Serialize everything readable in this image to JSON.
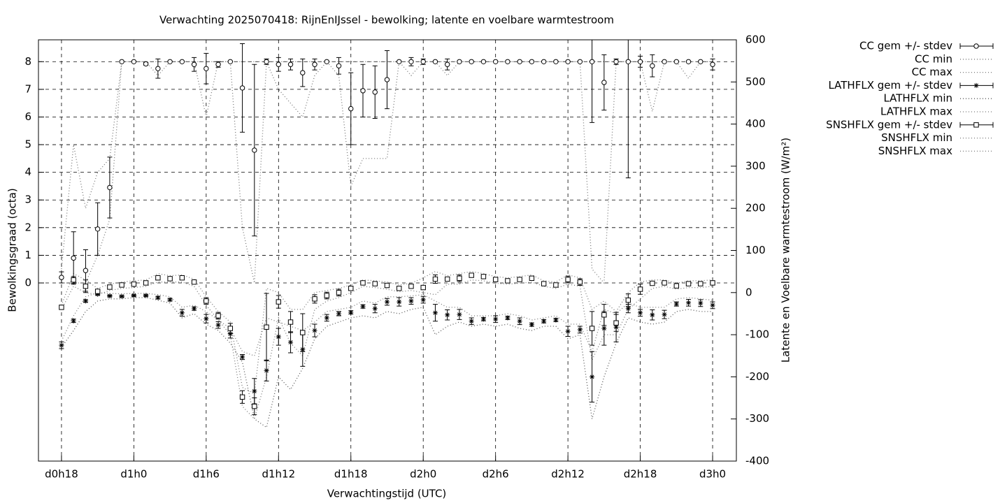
{
  "chart_data": {
    "type": "errorbar",
    "title": "Verwachting 2025070418: RijnEnIJssel - bewolking; latente en voelbare warmtestroom",
    "x_label": "Verwachtingstijd (UTC)",
    "y_label": "Bewolkingsgraad (octa)",
    "y2_label": "Latente en Voelbare warmtestroom (W/m²)",
    "x": [
      18,
      19,
      20,
      21,
      22,
      23,
      24,
      25,
      26,
      27,
      28,
      29,
      30,
      31,
      32,
      33,
      34,
      35,
      36,
      37,
      38,
      39,
      40,
      41,
      42,
      43,
      44,
      45,
      46,
      47,
      48,
      49,
      50,
      51,
      52,
      53,
      54,
      55,
      56,
      57,
      58,
      59,
      60,
      61,
      62,
      63,
      64,
      65,
      66,
      67,
      68,
      69,
      70,
      71,
      72
    ],
    "xlim": [
      16.09,
      73.97
    ],
    "xticks": [
      {
        "value": 18,
        "label": "d0h18"
      },
      {
        "value": 24,
        "label": "d1h0"
      },
      {
        "value": 30,
        "label": "d1h6"
      },
      {
        "value": 36,
        "label": "d1h12"
      },
      {
        "value": 42,
        "label": "d1h18"
      },
      {
        "value": 48,
        "label": "d2h0"
      },
      {
        "value": 54,
        "label": "d2h6"
      },
      {
        "value": 60,
        "label": "d2h12"
      },
      {
        "value": 66,
        "label": "d2h18"
      },
      {
        "value": 72,
        "label": "d3h0"
      }
    ],
    "ylim": [
      -6.44,
      8.79
    ],
    "yticks": [
      0,
      1,
      2,
      3,
      4,
      5,
      6,
      7,
      8
    ],
    "y2lim": [
      -400,
      600
    ],
    "y2ticks": [
      -400,
      -300,
      -200,
      -100,
      0,
      100,
      200,
      300,
      400,
      500,
      600
    ],
    "grid": true,
    "legend": "outside-right",
    "series": [
      {
        "name": "CC gem +/- stdev",
        "color": "#000000",
        "marker": "circle",
        "axis": "y",
        "values": [
          0.2,
          0.9,
          0.45,
          1.95,
          3.45,
          8,
          8,
          7.92,
          7.75,
          8,
          8,
          7.9,
          7.75,
          7.9,
          8,
          7.05,
          4.8,
          8,
          7.9,
          7.9,
          7.6,
          7.9,
          8,
          7.85,
          6.3,
          6.95,
          6.9,
          7.35,
          8,
          8,
          8,
          8,
          7.9,
          8,
          8,
          8,
          8,
          8,
          8,
          8,
          8,
          8,
          8,
          8,
          8,
          7.25,
          8,
          8,
          8,
          7.85,
          8,
          8,
          8,
          8,
          7.9
        ],
        "errors": [
          0.2,
          0.95,
          0.75,
          0.95,
          1.1,
          0,
          0,
          0.05,
          0.35,
          0,
          0,
          0.25,
          0.55,
          0.1,
          0,
          1.6,
          3.1,
          0.1,
          0.25,
          0.2,
          0.5,
          0.2,
          0,
          0.3,
          1.3,
          0.95,
          0.95,
          1.05,
          0,
          0.15,
          0.1,
          0,
          0.2,
          0,
          0,
          0,
          0,
          0,
          0,
          0,
          0,
          0,
          0,
          0,
          2.2,
          1.0,
          0.1,
          4.2,
          0.2,
          0.4,
          0,
          0,
          0,
          0,
          0.2
        ]
      },
      {
        "name": "CC min",
        "color": "#777777",
        "line": "dotted",
        "axis": "y",
        "values": [
          0,
          0,
          0,
          1,
          2.3,
          8,
          8,
          8,
          7.5,
          8,
          8,
          8,
          6,
          8,
          8,
          2,
          0,
          8,
          7,
          6.5,
          6,
          7.5,
          8,
          7.5,
          3.5,
          4.5,
          4.5,
          4.5,
          8,
          7.5,
          8,
          8,
          7.5,
          8,
          8,
          8,
          8,
          8,
          8,
          8,
          8,
          8,
          8,
          8,
          0.5,
          0,
          8,
          8,
          8,
          6.2,
          8,
          8,
          7.4,
          8,
          8
        ]
      },
      {
        "name": "CC max",
        "color": "#777777",
        "line": "dotted",
        "axis": "y",
        "values": [
          0.5,
          5,
          2.7,
          4,
          4.5,
          8,
          8,
          8,
          8,
          8,
          8,
          8,
          8,
          8,
          8,
          8,
          8,
          8,
          8,
          8,
          8,
          8,
          8,
          8,
          8,
          8,
          8,
          8,
          8,
          8,
          8,
          8,
          8,
          8,
          8,
          8,
          8,
          8,
          8,
          8,
          8,
          8,
          8,
          8,
          8,
          8,
          8,
          8,
          8,
          8,
          8,
          8,
          8,
          8,
          8
        ]
      },
      {
        "name": "LATHFLX gem +/- stdev",
        "color": "#000000",
        "marker": "asterisk",
        "axis": "y2",
        "values": [
          -125,
          -67,
          -20,
          -4,
          -8,
          -9,
          -7,
          -7,
          -12,
          -17,
          -48,
          -38,
          -62,
          -77,
          -98,
          -153,
          -234,
          -185,
          -105,
          -118,
          -135,
          -90,
          -60,
          -50,
          -47,
          -33,
          -38,
          -22,
          -22,
          -20,
          -17,
          -48,
          -53,
          -52,
          -68,
          -63,
          -63,
          -60,
          -68,
          -76,
          -68,
          -65,
          -92,
          -88,
          -200,
          -85,
          -82,
          -38,
          -48,
          -53,
          -52,
          -27,
          -24,
          -25,
          -30
        ],
        "errors": [
          8,
          4,
          3,
          2,
          2,
          2,
          2,
          2,
          3,
          3,
          8,
          4,
          10,
          8,
          10,
          6,
          30,
          25,
          20,
          25,
          40,
          15,
          8,
          5,
          4,
          4,
          10,
          8,
          10,
          8,
          8,
          20,
          12,
          12,
          8,
          4,
          8,
          4,
          8,
          4,
          4,
          4,
          12,
          8,
          60,
          40,
          35,
          10,
          8,
          12,
          10,
          5,
          8,
          8,
          8
        ]
      },
      {
        "name": "LATHFLX min",
        "color": "#555555",
        "line": "dotted",
        "axis": "y2",
        "values": [
          -130,
          -90,
          -45,
          -20,
          -15,
          -15,
          -12,
          -12,
          -18,
          -25,
          -60,
          -50,
          -75,
          -90,
          -120,
          -165,
          -300,
          -320,
          -200,
          -230,
          -180,
          -110,
          -80,
          -70,
          -60,
          -55,
          -60,
          -45,
          -50,
          -40,
          -35,
          -100,
          -80,
          -70,
          -80,
          -75,
          -80,
          -75,
          -85,
          -90,
          -80,
          -80,
          -110,
          -100,
          -300,
          -200,
          -120,
          -60,
          -70,
          -75,
          -70,
          -45,
          -40,
          -45,
          -45
        ]
      },
      {
        "name": "LATHFLX max",
        "color": "#777777",
        "line": "dotted",
        "axis": "y2",
        "values": [
          -115,
          -55,
          -10,
          0,
          -2,
          -3,
          -2,
          -2,
          -5,
          -10,
          -35,
          -30,
          -45,
          -65,
          -85,
          -140,
          -150,
          -60,
          -70,
          -80,
          -90,
          -70,
          -45,
          -40,
          -35,
          -20,
          -25,
          -10,
          -10,
          -8,
          -5,
          -20,
          -35,
          -35,
          -55,
          -55,
          -55,
          -50,
          -55,
          -65,
          -60,
          -55,
          -75,
          -75,
          -140,
          -40,
          -50,
          -25,
          -35,
          -35,
          -35,
          -15,
          -12,
          -15,
          -18
        ]
      },
      {
        "name": "SNSHFLX gem +/- stdev",
        "color": "#000000",
        "marker": "square",
        "axis": "y2",
        "values": [
          -35,
          30,
          15,
          3,
          13,
          18,
          20,
          23,
          35,
          33,
          35,
          25,
          -20,
          -55,
          -85,
          -248,
          -270,
          -82,
          -22,
          -70,
          -95,
          -15,
          -7,
          0,
          10,
          23,
          21,
          17,
          10,
          15,
          12,
          32,
          32,
          34,
          41,
          38,
          31,
          28,
          31,
          34,
          21,
          18,
          31,
          25,
          -85,
          -53,
          -72,
          -18,
          8,
          22,
          23,
          16,
          21,
          21,
          23
        ],
        "errors": [
          5,
          8,
          15,
          3,
          3,
          3,
          3,
          3,
          5,
          3,
          3,
          3,
          8,
          8,
          12,
          15,
          20,
          80,
          15,
          25,
          45,
          10,
          8,
          8,
          5,
          3,
          3,
          5,
          3,
          3,
          5,
          10,
          5,
          8,
          3,
          3,
          5,
          3,
          3,
          3,
          3,
          3,
          8,
          8,
          40,
          25,
          20,
          15,
          12,
          3,
          3,
          3,
          3,
          3,
          5
        ]
      },
      {
        "name": "SNSHFLX min",
        "color": "#777777",
        "line": "dotted",
        "axis": "y2",
        "values": [
          -40,
          15,
          0,
          -5,
          5,
          10,
          12,
          15,
          25,
          25,
          25,
          15,
          -30,
          -65,
          -100,
          -270,
          -300,
          -200,
          -60,
          -120,
          -150,
          -40,
          -20,
          -12,
          0,
          15,
          12,
          8,
          2,
          5,
          0,
          -5,
          20,
          20,
          30,
          28,
          22,
          20,
          22,
          25,
          15,
          10,
          20,
          15,
          -160,
          -100,
          -100,
          -40,
          -15,
          10,
          15,
          8,
          12,
          12,
          15
        ]
      },
      {
        "name": "SNSHFLX max",
        "color": "#777777",
        "line": "dotted",
        "axis": "y2",
        "values": [
          -30,
          45,
          30,
          10,
          20,
          25,
          28,
          30,
          45,
          40,
          42,
          32,
          -10,
          -45,
          -70,
          -225,
          -240,
          10,
          0,
          -40,
          -40,
          0,
          5,
          10,
          18,
          30,
          28,
          25,
          18,
          22,
          35,
          50,
          40,
          45,
          50,
          45,
          38,
          35,
          38,
          42,
          28,
          25,
          42,
          35,
          -40,
          -20,
          -45,
          0,
          25,
          30,
          30,
          22,
          28,
          28,
          30
        ]
      }
    ]
  }
}
